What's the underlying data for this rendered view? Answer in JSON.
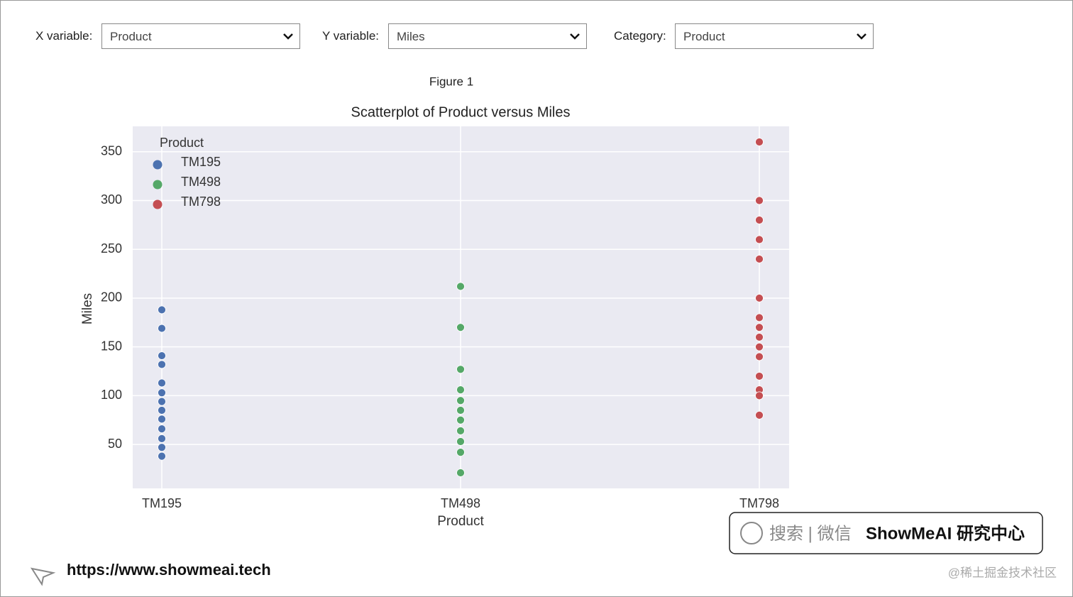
{
  "controls": [
    {
      "label": "X variable:",
      "value": "Product"
    },
    {
      "label": "Y variable:",
      "value": "Miles"
    },
    {
      "label": "Category:",
      "value": "Product"
    }
  ],
  "figure_label": "Figure 1",
  "chart_data": {
    "type": "scatter",
    "title": "Scatterplot of Product versus Miles",
    "x_label": "Product",
    "y_label": "Miles",
    "categories": [
      "TM195",
      "TM498",
      "TM798"
    ],
    "legend_title": "Product",
    "legend_position": "upper left",
    "grid": true,
    "ylim": [
      5,
      376
    ],
    "yticks": [
      50,
      100,
      150,
      200,
      250,
      300,
      350
    ],
    "series": [
      {
        "name": "TM195",
        "color": "#4c72b0",
        "values": [
          188,
          169,
          141,
          132,
          113,
          103,
          94,
          85,
          76,
          66,
          56,
          47,
          38
        ]
      },
      {
        "name": "TM498",
        "color": "#55a868",
        "values": [
          212,
          170,
          127,
          106,
          95,
          85,
          75,
          64,
          53,
          42,
          21
        ]
      },
      {
        "name": "TM798",
        "color": "#c44e52",
        "values": [
          360,
          300,
          280,
          260,
          240,
          200,
          180,
          170,
          160,
          150,
          140,
          120,
          106,
          100,
          80
        ]
      }
    ]
  },
  "watermark": {
    "search": "搜索 | 微信",
    "brand": "ShowMeAI 研究中心",
    "url": "https://www.showmeai.tech",
    "credit": "@稀土掘金技术社区"
  }
}
